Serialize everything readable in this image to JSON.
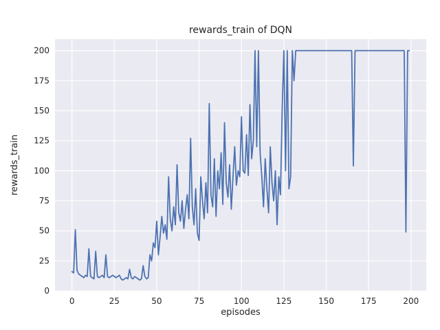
{
  "chart_data": {
    "type": "line",
    "title": "rewards_train of DQN",
    "xlabel": "episodes",
    "ylabel": "rewards_train",
    "style": "seaborn-darkgrid",
    "axes_bg": "#EAEAF2",
    "grid_color": "#FFFFFF",
    "line_color": "#4C72B0",
    "grid": true,
    "legend": "none",
    "xlim": [
      -10,
      209
    ],
    "ylim": [
      -0.5,
      209.5
    ],
    "xticks": [
      0,
      25,
      50,
      75,
      100,
      125,
      150,
      175,
      200
    ],
    "yticks": [
      0,
      25,
      50,
      75,
      100,
      125,
      150,
      175,
      200
    ],
    "series": [
      {
        "name": "rewards_train",
        "x_is_episode_index": true,
        "values": [
          16,
          15,
          51,
          17,
          14,
          13,
          12,
          11,
          13,
          12,
          35,
          12,
          11,
          10,
          33,
          12,
          11,
          12,
          13,
          11,
          30,
          12,
          11,
          12,
          13,
          12,
          11,
          12,
          13,
          10,
          9,
          10,
          11,
          10,
          18,
          11,
          10,
          12,
          11,
          10,
          9,
          10,
          21,
          12,
          10,
          11,
          30,
          25,
          40,
          36,
          58,
          30,
          45,
          62,
          48,
          55,
          43,
          95,
          60,
          50,
          70,
          55,
          105,
          65,
          58,
          75,
          52,
          68,
          80,
          60,
          127,
          70,
          55,
          85,
          48,
          42,
          95,
          75,
          60,
          90,
          65,
          156,
          80,
          70,
          110,
          62,
          100,
          85,
          115,
          72,
          140,
          90,
          78,
          105,
          68,
          95,
          120,
          88,
          100,
          95,
          145,
          100,
          98,
          130,
          96,
          155,
          110,
          125,
          200,
          120,
          200,
          115,
          95,
          70,
          110,
          85,
          65,
          120,
          90,
          75,
          100,
          55,
          95,
          80,
          150,
          200,
          100,
          200,
          85,
          95,
          200,
          175,
          200,
          200,
          200,
          200,
          200,
          200,
          200,
          200,
          200,
          200,
          200,
          200,
          200,
          200,
          200,
          200,
          200,
          200,
          200,
          200,
          200,
          200,
          200,
          200,
          200,
          200,
          200,
          200,
          200,
          200,
          200,
          200,
          200,
          200,
          104,
          200,
          200,
          200,
          200,
          200,
          200,
          200,
          200,
          200,
          200,
          200,
          200,
          200,
          200,
          200,
          200,
          200,
          200,
          200,
          200,
          200,
          200,
          200,
          200,
          200,
          200,
          200,
          200,
          200,
          200,
          49,
          200,
          200
        ]
      }
    ]
  }
}
